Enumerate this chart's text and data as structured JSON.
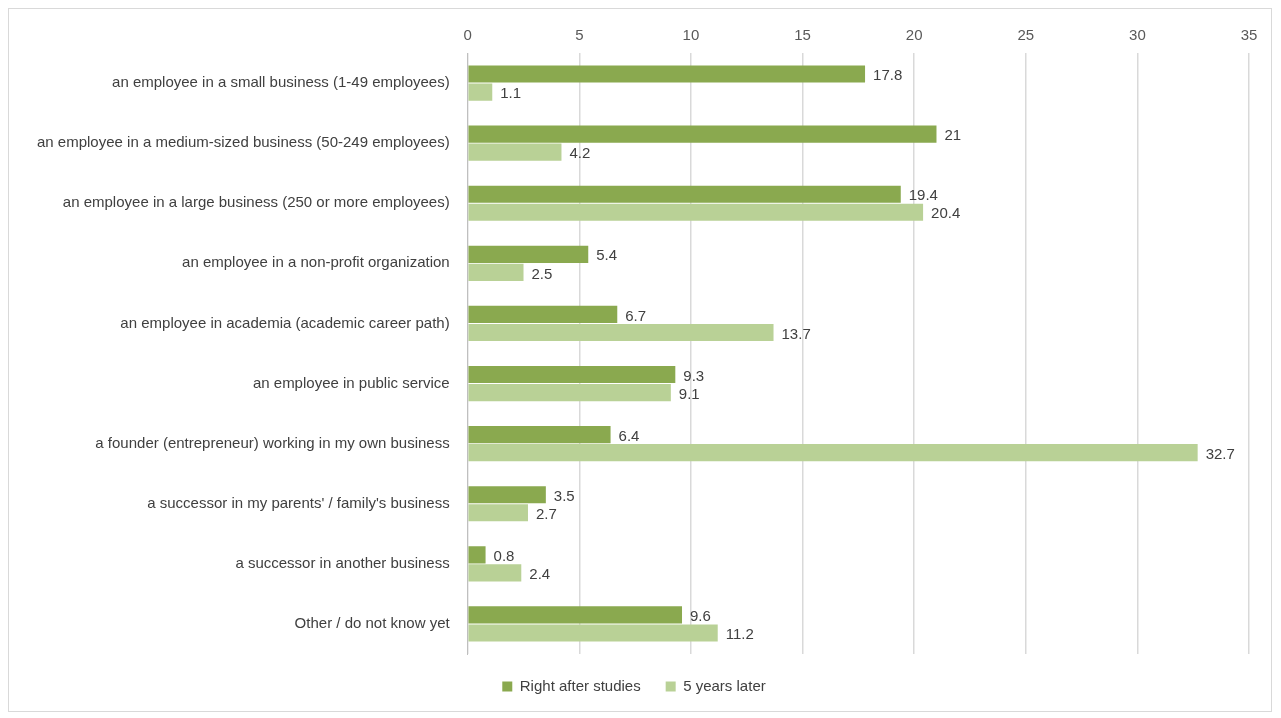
{
  "chart_data": {
    "type": "bar",
    "orientation": "horizontal",
    "categories": [
      "an employee in a small business (1-49 employees)",
      "an employee in a medium-sized business (50-249 employees)",
      "an employee in a large business (250 or more employees)",
      "an employee in a non-profit organization",
      "an employee in academia (academic career path)",
      "an employee in public service",
      "a founder (entrepreneur) working in my own business",
      "a successor in my parents' / family's business",
      "a successor in another business",
      "Other / do not know yet"
    ],
    "series": [
      {
        "name": "Right after studies",
        "color": "#8aa94f",
        "values": [
          17.8,
          21,
          19.4,
          5.4,
          6.7,
          9.3,
          6.4,
          3.5,
          0.8,
          9.6
        ]
      },
      {
        "name": "5 years later",
        "color": "#b9d196",
        "values": [
          1.1,
          4.2,
          20.4,
          2.5,
          13.7,
          9.1,
          32.7,
          2.7,
          2.4,
          11.2
        ]
      }
    ],
    "xlim": [
      0,
      35
    ],
    "xticks": [
      0,
      5,
      10,
      15,
      20,
      25,
      30,
      35
    ],
    "grid": "x",
    "legend": "bottom",
    "data_labels": true
  }
}
